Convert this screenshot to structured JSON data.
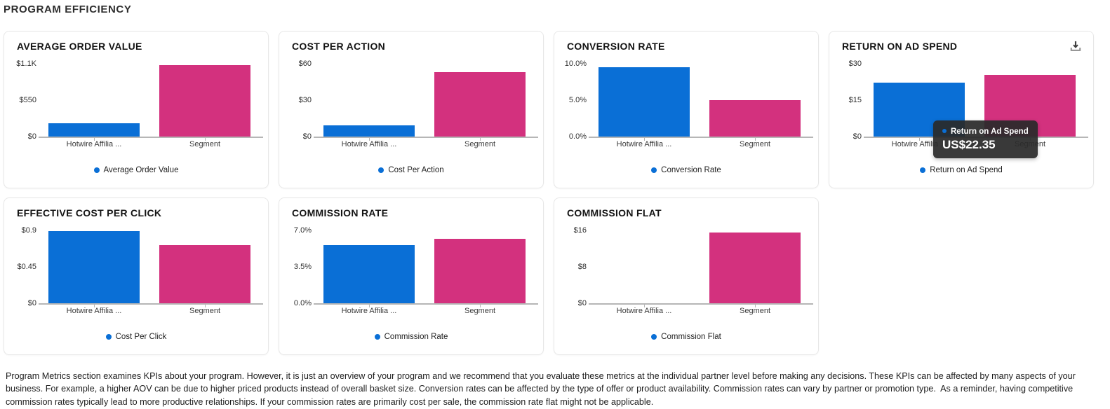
{
  "page_title": "PROGRAM EFFICIENCY",
  "colors": {
    "program_bar": "#0a6fd6",
    "segment_bar": "#d3317e",
    "legend_dot": "#0a6fd6",
    "axis": "#b6b6b6",
    "tooltip_bg": "#2a2a2a"
  },
  "categories": [
    "Hotwire Affilia ...",
    "Segment"
  ],
  "chart_data": [
    {
      "type": "bar",
      "title": "AVERAGE ORDER VALUE",
      "categories": [
        "Hotwire Affilia ...",
        "Segment"
      ],
      "series": [
        {
          "name": "Average Order Value",
          "values": [
            200,
            1080
          ]
        }
      ],
      "y_ticks": [
        "$1.1K",
        "$550",
        "$0"
      ],
      "ylim": [
        0,
        1100
      ],
      "legend": "Average Order Value",
      "legend_position": "bottom",
      "grid": false
    },
    {
      "type": "bar",
      "title": "COST PER ACTION",
      "categories": [
        "Hotwire Affilia ...",
        "Segment"
      ],
      "series": [
        {
          "name": "Cost Per Action",
          "values": [
            9,
            53
          ]
        }
      ],
      "y_ticks": [
        "$60",
        "$30",
        "$0"
      ],
      "ylim": [
        0,
        60
      ],
      "legend": "Cost Per Action",
      "legend_position": "bottom",
      "grid": false
    },
    {
      "type": "bar",
      "title": "CONVERSION RATE",
      "categories": [
        "Hotwire Affilia ...",
        "Segment"
      ],
      "series": [
        {
          "name": "Conversion Rate",
          "values": [
            9.5,
            5.0
          ]
        }
      ],
      "y_ticks": [
        "10.0%",
        "5.0%",
        "0.0%"
      ],
      "ylim": [
        0,
        10
      ],
      "legend": "Conversion Rate",
      "legend_position": "bottom",
      "grid": false
    },
    {
      "type": "bar",
      "title": "RETURN ON AD SPEND",
      "categories": [
        "Hotwire Affilia ...",
        "Segment"
      ],
      "series": [
        {
          "name": "Return on Ad Spend",
          "values": [
            22.35,
            25.4
          ]
        }
      ],
      "y_ticks": [
        "$30",
        "$15",
        "$0"
      ],
      "ylim": [
        0,
        30
      ],
      "legend": "Return on Ad Spend",
      "legend_position": "bottom",
      "grid": false,
      "has_download_icon": true,
      "tooltip": {
        "label": "Return on Ad Spend",
        "value": "US$22.35"
      }
    },
    {
      "type": "bar",
      "title": "EFFECTIVE COST PER CLICK",
      "categories": [
        "Hotwire Affilia ...",
        "Segment"
      ],
      "series": [
        {
          "name": "Cost Per Click",
          "values": [
            0.89,
            0.72
          ]
        }
      ],
      "y_ticks": [
        "$0.9",
        "$0.45",
        "$0"
      ],
      "ylim": [
        0,
        0.9
      ],
      "legend": "Cost Per Click",
      "legend_position": "bottom",
      "grid": false
    },
    {
      "type": "bar",
      "title": "COMMISSION RATE",
      "categories": [
        "Hotwire Affilia ...",
        "Segment"
      ],
      "series": [
        {
          "name": "Commission Rate",
          "values": [
            5.6,
            6.2
          ]
        }
      ],
      "y_ticks": [
        "7.0%",
        "3.5%",
        "0.0%"
      ],
      "ylim": [
        0,
        7
      ],
      "legend": "Commission Rate",
      "legend_position": "bottom",
      "grid": false
    },
    {
      "type": "bar",
      "title": "COMMISSION FLAT",
      "categories": [
        "Hotwire Affilia ...",
        "Segment"
      ],
      "series": [
        {
          "name": "Commission Flat",
          "values": [
            0,
            15.6
          ]
        }
      ],
      "y_ticks": [
        "$16",
        "$8",
        "$0"
      ],
      "ylim": [
        0,
        16
      ],
      "legend": "Commission Flat",
      "legend_position": "bottom",
      "grid": false
    }
  ],
  "footer_text": "Program Metrics section examines KPIs about your program. However, it is just an overview of your program and we recommend that you evaluate these metrics at the individual partner level before making any decisions. These KPIs can be affected by many aspects of your business. For example, a higher AOV can be due to higher priced products instead of overall basket size. Conversion rates can be affected by the type of offer or product availability. Commission rates can vary by partner or promotion type.  As a reminder, having competitive commission rates typically lead to more productive relationships. If your commission rates are primarily cost per sale, the commission rate flat might not be applicable."
}
